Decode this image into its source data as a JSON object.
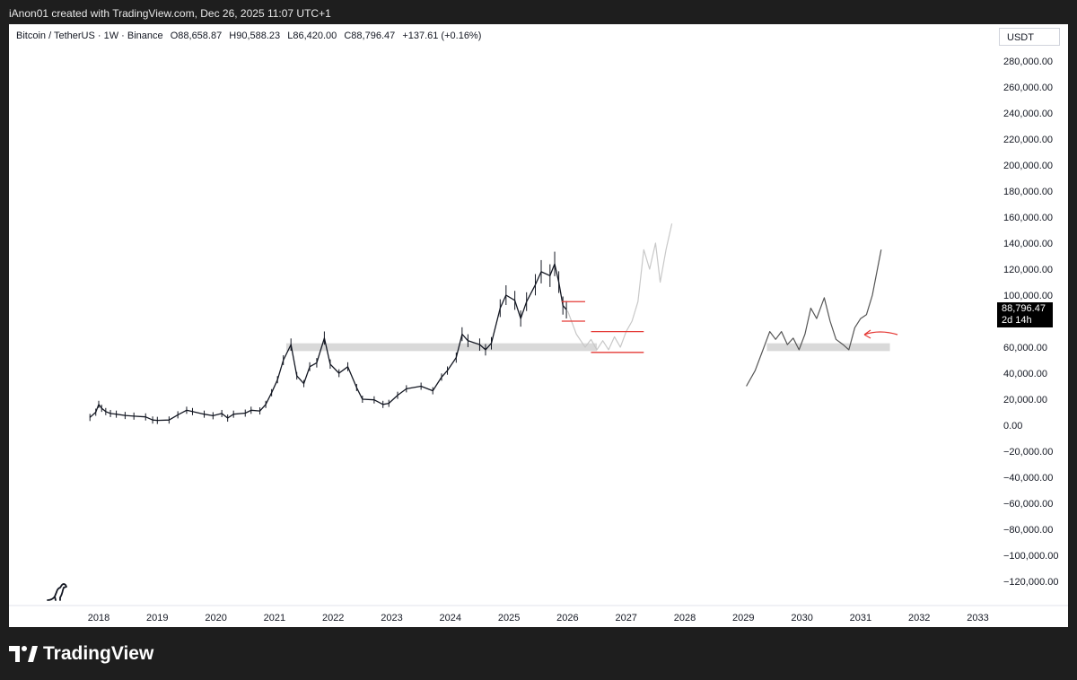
{
  "header": {
    "created_text": "iAnon01 created with TradingView.com, Dec 26, 2025 11:07 UTC+1"
  },
  "symbol": {
    "name": "Bitcoin / TetherUS · 1W · Binance",
    "open": "O88,658.87",
    "high": "H90,588.23",
    "low": "L86,420.00",
    "close": "C88,796.47",
    "change": "+137.61 (+0.16%)"
  },
  "price_axis": {
    "unit": "USDT",
    "last_price": "88,796.47",
    "countdown": "2d 14h"
  },
  "footer": {
    "brand": "TradingView"
  },
  "colors": {
    "candles": "#131722",
    "support_zone": "#d9d9d9",
    "marker": "#e53935",
    "projection": "#c8c8c8",
    "sketch": "#555555"
  },
  "chart_data": {
    "type": "line",
    "series": [
      {
        "values": [
          [
            2017.85,
            6000
          ],
          [
            2017.95,
            10000
          ],
          [
            2018.0,
            16000
          ],
          [
            2018.05,
            13000
          ],
          [
            2018.12,
            10500
          ],
          [
            2018.2,
            9000
          ],
          [
            2018.3,
            8500
          ],
          [
            2018.45,
            7500
          ],
          [
            2018.6,
            7000
          ],
          [
            2018.8,
            6400
          ],
          [
            2018.92,
            4000
          ],
          [
            2019.0,
            3700
          ],
          [
            2019.2,
            4000
          ],
          [
            2019.35,
            8000
          ],
          [
            2019.5,
            11500
          ],
          [
            2019.6,
            10500
          ],
          [
            2019.8,
            8500
          ],
          [
            2019.95,
            7300
          ],
          [
            2020.1,
            9000
          ],
          [
            2020.2,
            5500
          ],
          [
            2020.3,
            8500
          ],
          [
            2020.5,
            9300
          ],
          [
            2020.6,
            11500
          ],
          [
            2020.75,
            11000
          ],
          [
            2020.85,
            16000
          ],
          [
            2020.95,
            25000
          ],
          [
            2021.05,
            35000
          ],
          [
            2021.15,
            50000
          ],
          [
            2021.28,
            62000
          ],
          [
            2021.38,
            38000
          ],
          [
            2021.5,
            32000
          ],
          [
            2021.6,
            45000
          ],
          [
            2021.72,
            48000
          ],
          [
            2021.85,
            67000
          ],
          [
            2021.95,
            47000
          ],
          [
            2022.1,
            40000
          ],
          [
            2022.25,
            45000
          ],
          [
            2022.4,
            29000
          ],
          [
            2022.5,
            20000
          ],
          [
            2022.7,
            19500
          ],
          [
            2022.85,
            16000
          ],
          [
            2022.95,
            16800
          ],
          [
            2023.1,
            23000
          ],
          [
            2023.25,
            28000
          ],
          [
            2023.5,
            30000
          ],
          [
            2023.7,
            26500
          ],
          [
            2023.85,
            37000
          ],
          [
            2023.95,
            42000
          ],
          [
            2024.1,
            52000
          ],
          [
            2024.2,
            70000
          ],
          [
            2024.3,
            65000
          ],
          [
            2024.5,
            62000
          ],
          [
            2024.6,
            58000
          ],
          [
            2024.7,
            63000
          ],
          [
            2024.85,
            90000
          ],
          [
            2024.95,
            100000
          ],
          [
            2025.1,
            96000
          ],
          [
            2025.2,
            82000
          ],
          [
            2025.3,
            95000
          ],
          [
            2025.45,
            108000
          ],
          [
            2025.55,
            118000
          ],
          [
            2025.7,
            115000
          ],
          [
            2025.78,
            124000
          ],
          [
            2025.85,
            110000
          ],
          [
            2025.92,
            92000
          ],
          [
            2025.98,
            88796
          ]
        ]
      },
      {
        "values": [
          [
            2026.0,
            88000
          ],
          [
            2026.15,
            70000
          ],
          [
            2026.3,
            60000
          ],
          [
            2026.4,
            66000
          ],
          [
            2026.5,
            58000
          ],
          [
            2026.6,
            65000
          ],
          [
            2026.7,
            58000
          ],
          [
            2026.8,
            68000
          ],
          [
            2026.9,
            60000
          ],
          [
            2027.0,
            72000
          ],
          [
            2027.1,
            80000
          ],
          [
            2027.2,
            95000
          ],
          [
            2027.3,
            135000
          ],
          [
            2027.4,
            120000
          ],
          [
            2027.5,
            140000
          ],
          [
            2027.58,
            110000
          ],
          [
            2027.68,
            135000
          ],
          [
            2027.78,
            155000
          ]
        ]
      },
      {
        "values": [
          [
            2029.05,
            30000
          ],
          [
            2029.2,
            42000
          ],
          [
            2029.35,
            60000
          ],
          [
            2029.45,
            72000
          ],
          [
            2029.55,
            66000
          ],
          [
            2029.65,
            72000
          ],
          [
            2029.75,
            62000
          ],
          [
            2029.85,
            67000
          ],
          [
            2029.95,
            58000
          ],
          [
            2030.05,
            70000
          ],
          [
            2030.15,
            90000
          ],
          [
            2030.25,
            82000
          ],
          [
            2030.38,
            98000
          ],
          [
            2030.48,
            80000
          ],
          [
            2030.58,
            66000
          ],
          [
            2030.7,
            62000
          ],
          [
            2030.8,
            58000
          ],
          [
            2030.9,
            75000
          ],
          [
            2031.0,
            82000
          ],
          [
            2031.1,
            85000
          ],
          [
            2031.2,
            100000
          ],
          [
            2031.35,
            135000
          ]
        ]
      }
    ],
    "annotations": {
      "support_zone_y": [
        57000,
        63000
      ],
      "marker_boxes": [
        {
          "x": [
            2025.9,
            2026.3
          ],
          "y": [
            80000,
            95000
          ]
        },
        {
          "x": [
            2026.4,
            2027.3
          ],
          "y": [
            56000,
            72000
          ]
        }
      ]
    },
    "x_ticks": [
      "2018",
      "2019",
      "2020",
      "2021",
      "2022",
      "2023",
      "2024",
      "2025",
      "2026",
      "2027",
      "2028",
      "2029",
      "2030",
      "2031",
      "2032",
      "2033"
    ],
    "y_ticks": [
      "280,000.00",
      "260,000.00",
      "240,000.00",
      "220,000.00",
      "200,000.00",
      "180,000.00",
      "160,000.00",
      "140,000.00",
      "120,000.00",
      "100,000.00",
      "60,000.00",
      "40,000.00",
      "20,000.00",
      "0.00",
      "−20,000.00",
      "−40,000.00",
      "−60,000.00",
      "−80,000.00",
      "−100,000.00",
      "−120,000.00"
    ],
    "xlim": [
      2017.0,
      2033.2
    ],
    "ylim": [
      -130000,
      290000
    ],
    "grid": false
  }
}
